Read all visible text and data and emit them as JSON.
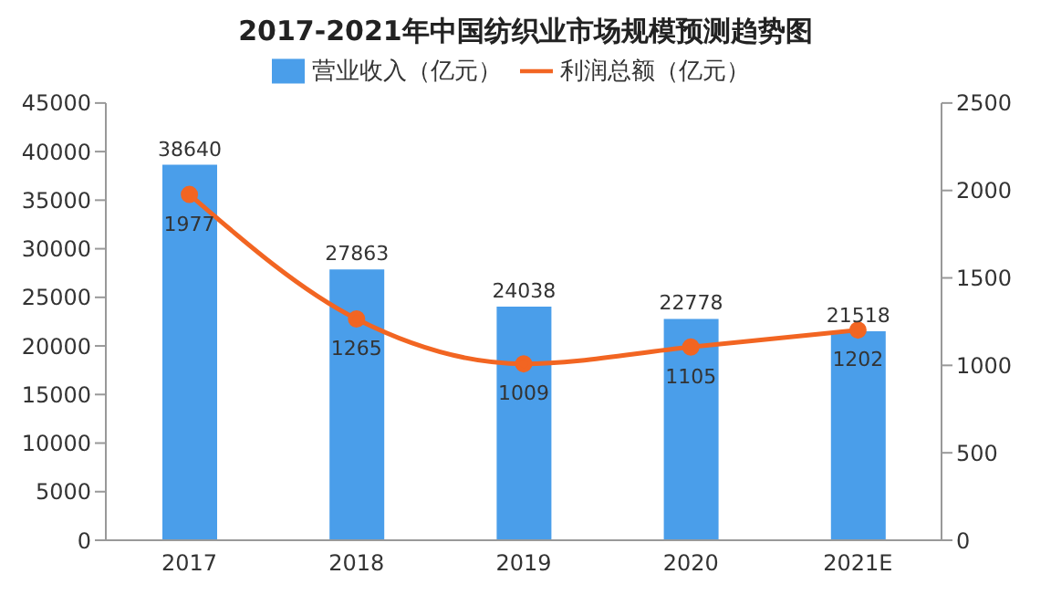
{
  "chart_data": {
    "type": "bar",
    "title": "2017-2021年中国纺织业市场规模预测趋势图",
    "categories": [
      "2017",
      "2018",
      "2019",
      "2020",
      "2021E"
    ],
    "series": [
      {
        "name": "营业收入（亿元）",
        "color": "#4a9eea",
        "values": [
          38640,
          27863,
          24038,
          22778,
          21518
        ]
      },
      {
        "name": "利润总额（亿元）",
        "type": "line",
        "axis": "y2",
        "color": "#f26522",
        "values": [
          1977,
          1265,
          1009,
          1105,
          1202
        ]
      }
    ],
    "ylim": [
      0,
      45000
    ],
    "yticks": [
      0,
      5000,
      10000,
      15000,
      20000,
      25000,
      30000,
      35000,
      40000,
      45000
    ],
    "y2lim": [
      0,
      2500
    ],
    "y2ticks": [
      0,
      500,
      1000,
      1500,
      2000,
      2500
    ],
    "grid": false,
    "legend": "top",
    "marker": "circle",
    "data_labels": true
  }
}
